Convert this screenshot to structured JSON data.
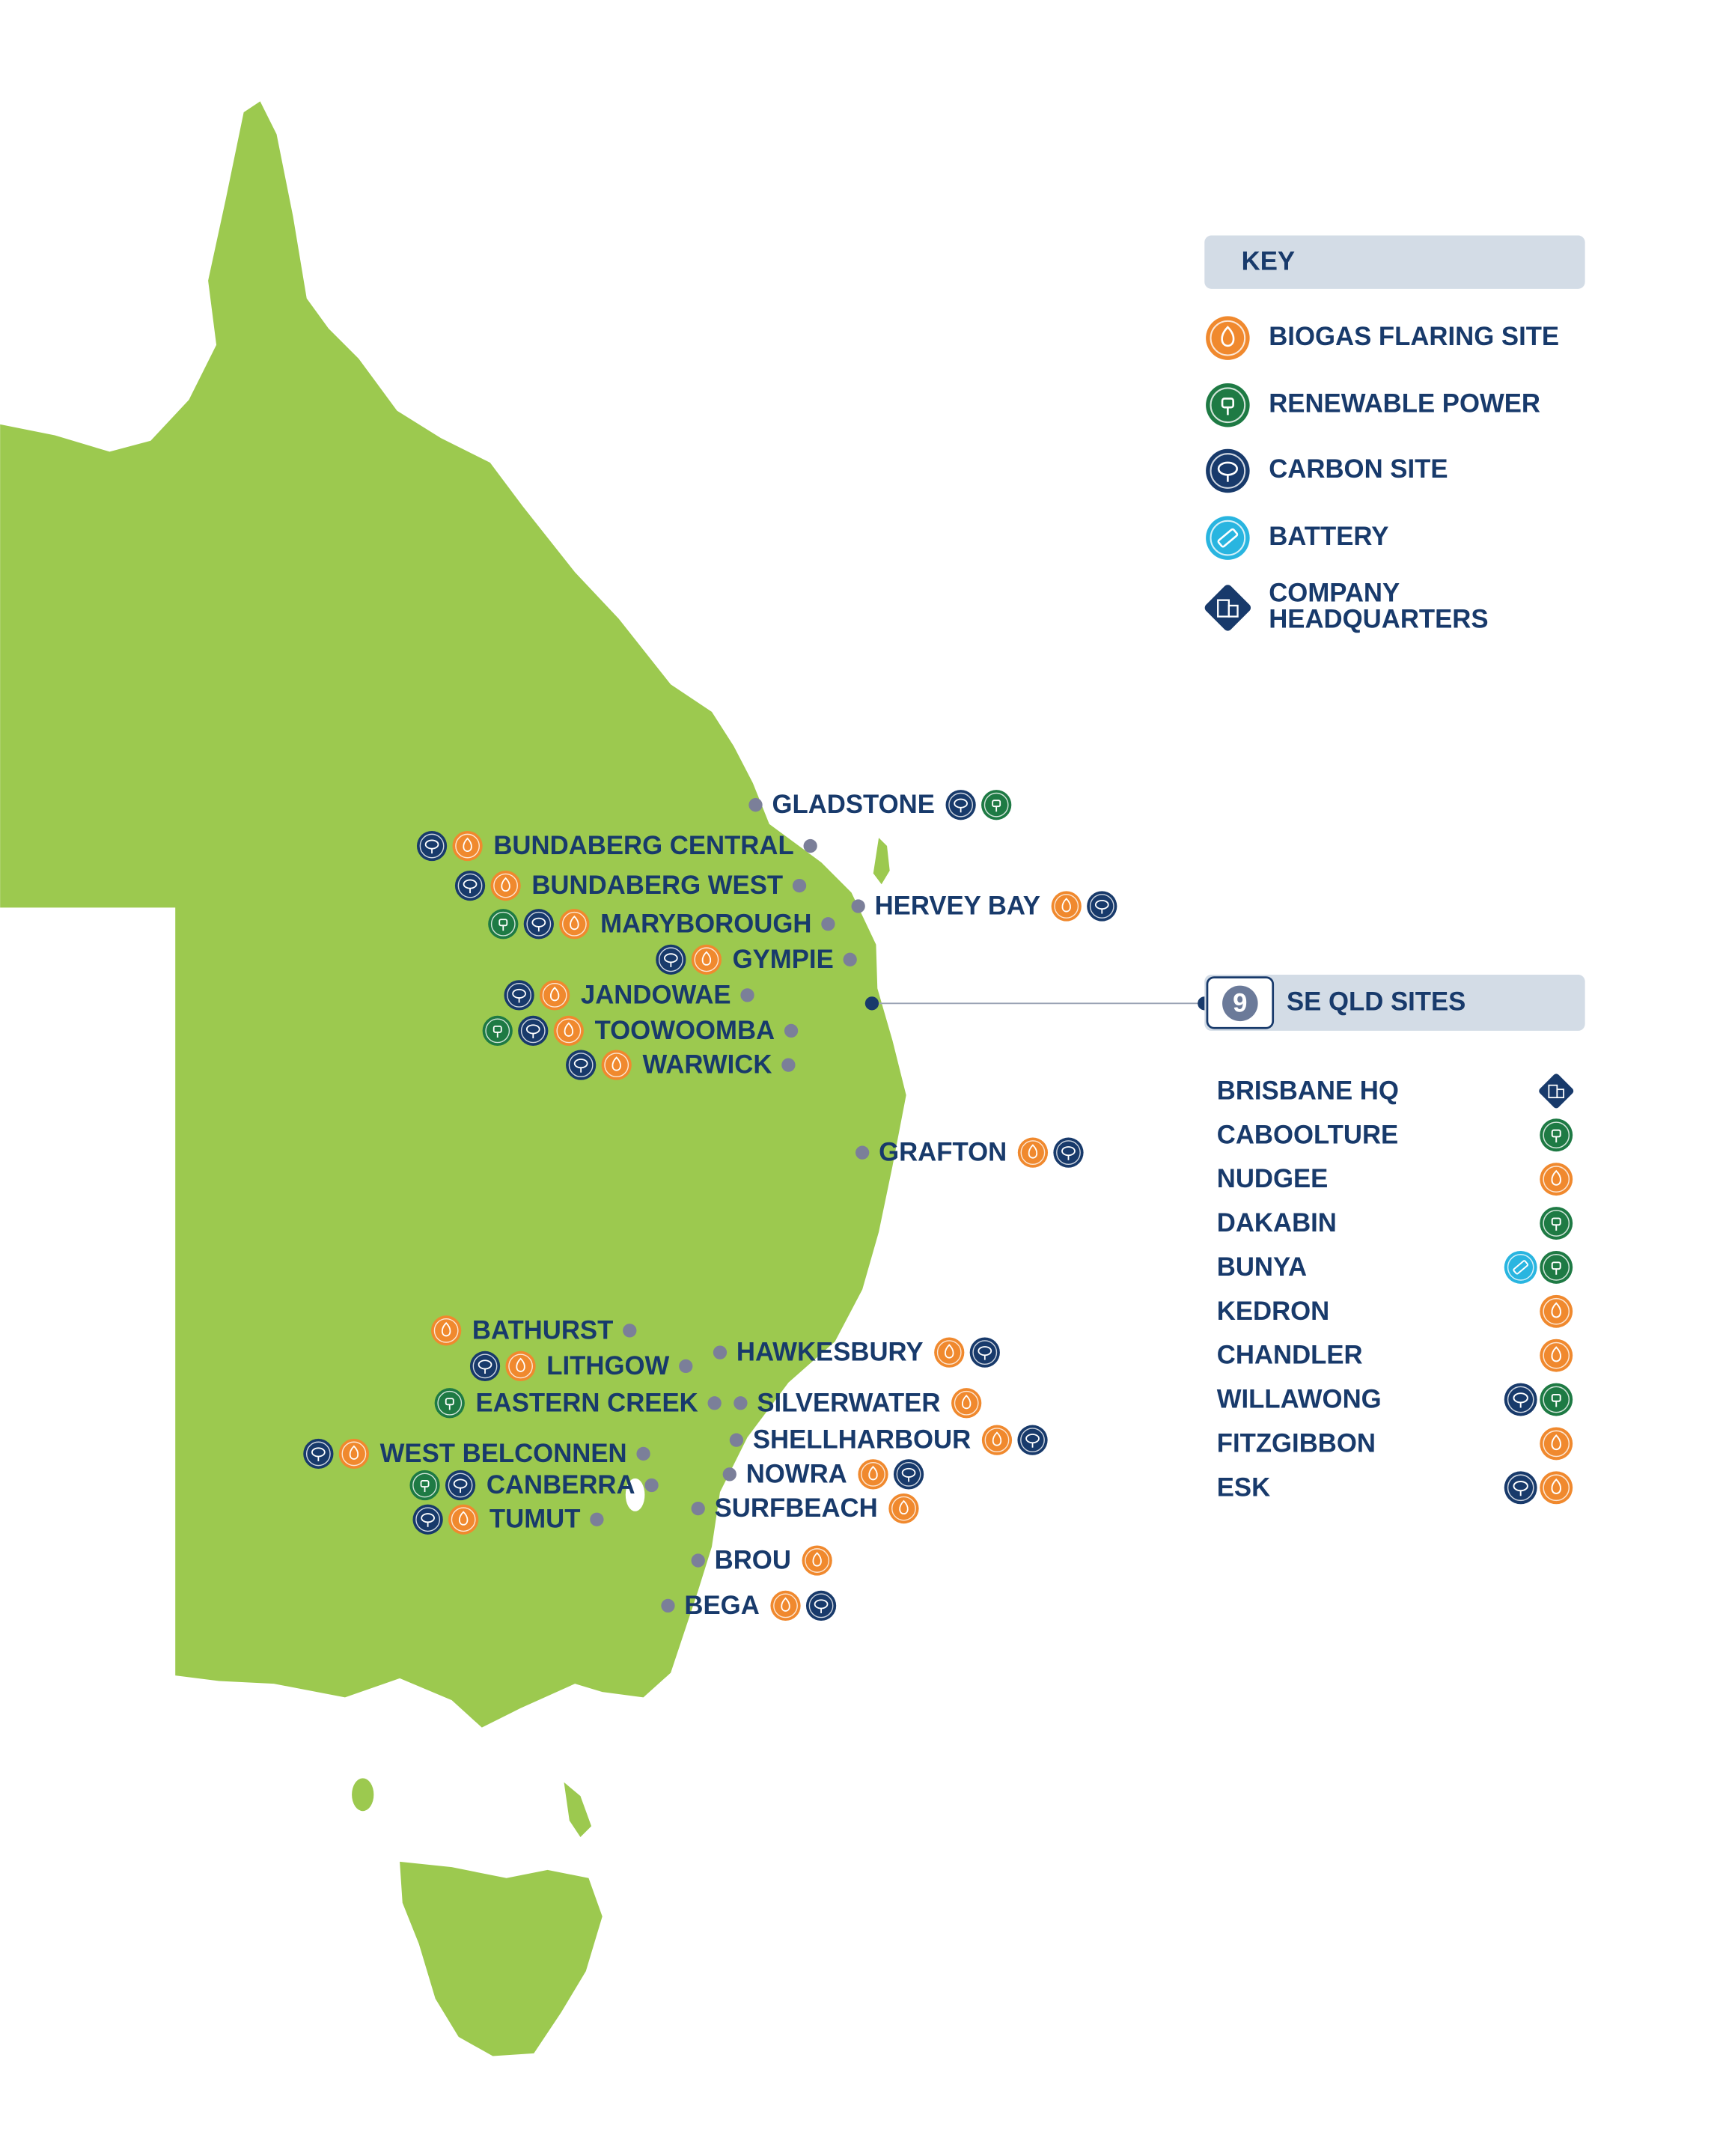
{
  "key": {
    "title": "KEY",
    "items": [
      {
        "label": [
          "BIOGAS FLARING SITE"
        ],
        "icon": "biogas",
        "color": "#f0892e"
      },
      {
        "label": [
          "RENEWABLE POWER"
        ],
        "icon": "renewable",
        "color": "#1e7a44"
      },
      {
        "label": [
          "CARBON SITE"
        ],
        "icon": "carbon",
        "color": "#183a6b"
      },
      {
        "label": [
          "BATTERY"
        ],
        "icon": "battery",
        "color": "#29b5e0"
      },
      {
        "label": [
          "COMPANY",
          "HEADQUARTERS"
        ],
        "icon": "hq",
        "color": "#183a6b"
      }
    ]
  },
  "sites": [
    {
      "name": "GLADSTONE",
      "icons": [
        "carbon",
        "renewable"
      ]
    },
    {
      "name": "BUNDABERG CENTRAL",
      "icons": [
        "carbon",
        "biogas"
      ]
    },
    {
      "name": "BUNDABERG WEST",
      "icons": [
        "carbon",
        "biogas"
      ]
    },
    {
      "name": "MARYBOROUGH",
      "icons": [
        "renewable",
        "carbon",
        "biogas"
      ]
    },
    {
      "name": "HERVEY BAY",
      "icons": [
        "biogas",
        "carbon"
      ]
    },
    {
      "name": "GYMPIE",
      "icons": [
        "carbon",
        "biogas"
      ]
    },
    {
      "name": "JANDOWAE",
      "icons": [
        "carbon",
        "biogas"
      ]
    },
    {
      "name": "TOOWOOMBA",
      "icons": [
        "renewable",
        "carbon",
        "biogas"
      ]
    },
    {
      "name": "WARWICK",
      "icons": [
        "carbon",
        "biogas"
      ]
    },
    {
      "name": "GRAFTON",
      "icons": [
        "biogas",
        "carbon"
      ]
    },
    {
      "name": "BATHURST",
      "icons": [
        "biogas"
      ]
    },
    {
      "name": "HAWKESBURY",
      "icons": [
        "biogas",
        "carbon"
      ]
    },
    {
      "name": "LITHGOW",
      "icons": [
        "carbon",
        "biogas"
      ]
    },
    {
      "name": "EASTERN CREEK",
      "icons": [
        "renewable"
      ]
    },
    {
      "name": "SILVERWATER",
      "icons": [
        "biogas"
      ]
    },
    {
      "name": "SHELLHARBOUR",
      "icons": [
        "biogas",
        "carbon"
      ]
    },
    {
      "name": "WEST BELCONNEN",
      "icons": [
        "carbon",
        "biogas"
      ]
    },
    {
      "name": "CANBERRA",
      "icons": [
        "renewable",
        "carbon"
      ]
    },
    {
      "name": "NOWRA",
      "icons": [
        "biogas",
        "carbon"
      ]
    },
    {
      "name": "SURFBEACH",
      "icons": [
        "biogas"
      ]
    },
    {
      "name": "TUMUT",
      "icons": [
        "carbon",
        "biogas"
      ]
    },
    {
      "name": "BROU",
      "icons": [
        "biogas"
      ]
    },
    {
      "name": "BEGA",
      "icons": [
        "biogas",
        "carbon"
      ]
    }
  ],
  "se_qld": {
    "count": 9,
    "title": "SE QLD SITES",
    "sites": [
      {
        "name": "BRISBANE HQ",
        "icons": [
          "hq"
        ]
      },
      {
        "name": "CABOOLTURE",
        "icons": [
          "renewable"
        ]
      },
      {
        "name": "NUDGEE",
        "icons": [
          "biogas"
        ]
      },
      {
        "name": "DAKABIN",
        "icons": [
          "renewable"
        ]
      },
      {
        "name": "BUNYA",
        "icons": [
          "battery",
          "renewable"
        ]
      },
      {
        "name": "KEDRON",
        "icons": [
          "biogas"
        ]
      },
      {
        "name": "CHANDLER",
        "icons": [
          "biogas"
        ]
      },
      {
        "name": "WILLAWONG",
        "icons": [
          "carbon",
          "renewable"
        ]
      },
      {
        "name": "FITZGIBBON",
        "icons": [
          "biogas"
        ]
      },
      {
        "name": "ESK",
        "icons": [
          "carbon",
          "biogas"
        ]
      }
    ]
  }
}
